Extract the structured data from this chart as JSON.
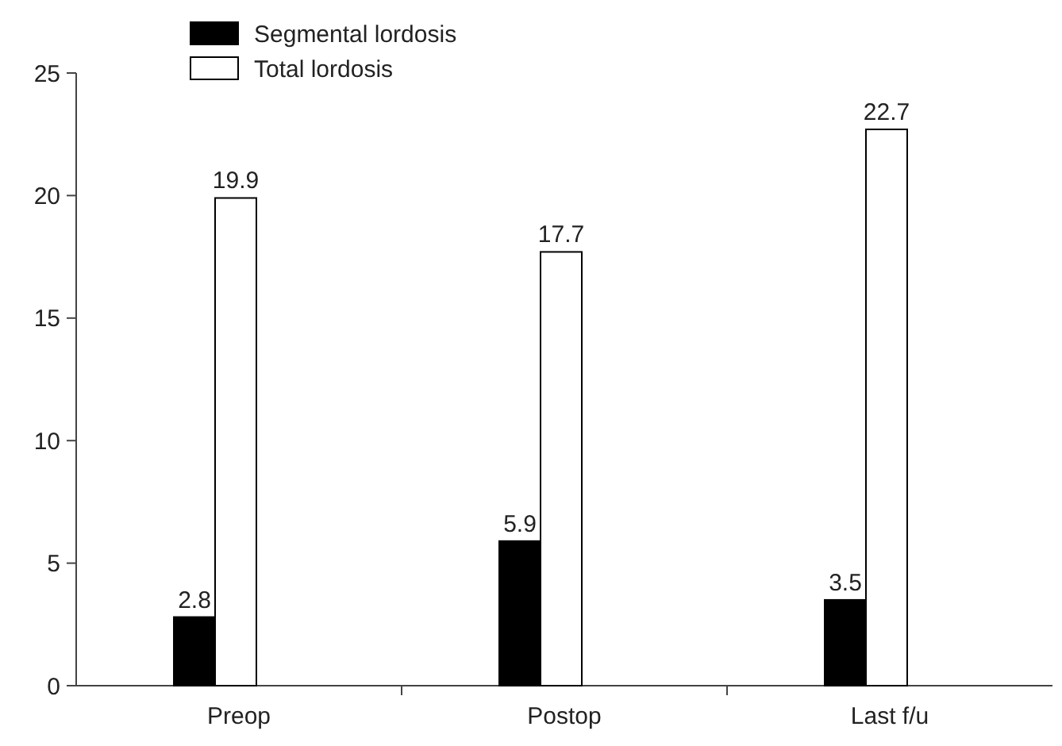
{
  "chart_data": {
    "type": "bar",
    "categories": [
      "Preop",
      "Postop",
      "Last f/u"
    ],
    "series": [
      {
        "name": "Segmental lordosis",
        "color": "#000000",
        "values": [
          2.8,
          5.9,
          3.5
        ]
      },
      {
        "name": "Total lordosis",
        "color": "#ffffff",
        "values": [
          19.9,
          17.7,
          22.7
        ]
      }
    ],
    "ylim": [
      0,
      25
    ],
    "yticks": [
      0,
      5,
      10,
      15,
      20,
      25
    ],
    "data_labels": true,
    "legend": "top left",
    "grid": false
  }
}
